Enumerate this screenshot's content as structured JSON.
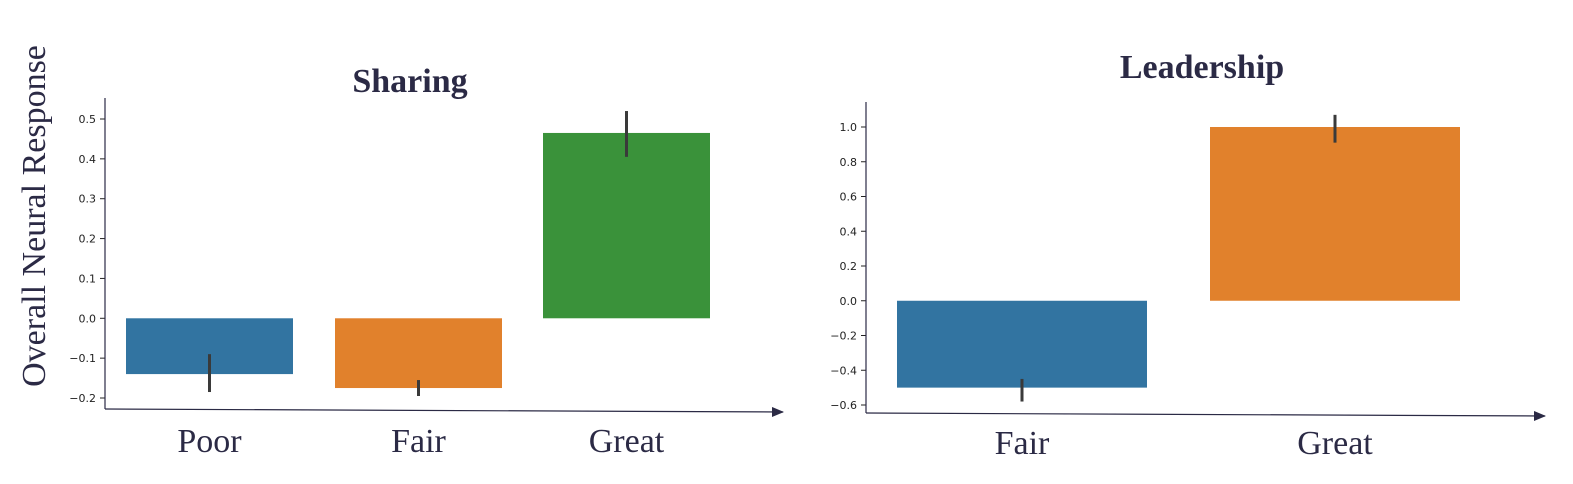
{
  "chart_data": [
    {
      "type": "bar",
      "title": "Sharing",
      "ylabel": "Overall Neural Response",
      "xlabel": "",
      "categories": [
        "Poor",
        "Fair",
        "Great"
      ],
      "values": [
        -0.14,
        -0.175,
        0.465
      ],
      "error_low": [
        -0.185,
        -0.195,
        0.405
      ],
      "error_high": [
        -0.09,
        -0.155,
        0.52
      ],
      "colors": [
        "#3274a1",
        "#e1812c",
        "#3a923a"
      ],
      "ylim": [
        -0.23,
        0.55
      ],
      "yticks": [
        -0.2,
        -0.1,
        0.0,
        0.1,
        0.2,
        0.3,
        0.4,
        0.5
      ],
      "ytick_labels": [
        "−0.2",
        "−0.1",
        "0.0",
        "0.1",
        "0.2",
        "0.3",
        "0.4",
        "0.5"
      ],
      "grid": false
    },
    {
      "type": "bar",
      "title": "Leadership",
      "ylabel": "",
      "xlabel": "",
      "categories": [
        "Fair",
        "Great"
      ],
      "values": [
        -0.5,
        1.0
      ],
      "error_low": [
        -0.58,
        0.91
      ],
      "error_high": [
        -0.45,
        1.07
      ],
      "colors": [
        "#3274a1",
        "#e1812c"
      ],
      "ylim": [
        -0.65,
        1.13
      ],
      "yticks": [
        -0.6,
        -0.4,
        -0.2,
        0.0,
        0.2,
        0.4,
        0.6,
        0.8,
        1.0
      ],
      "ytick_labels": [
        "−0.6",
        "−0.4",
        "−0.2",
        "0.0",
        "0.2",
        "0.4",
        "0.6",
        "0.8",
        "1.0"
      ],
      "grid": false
    }
  ]
}
